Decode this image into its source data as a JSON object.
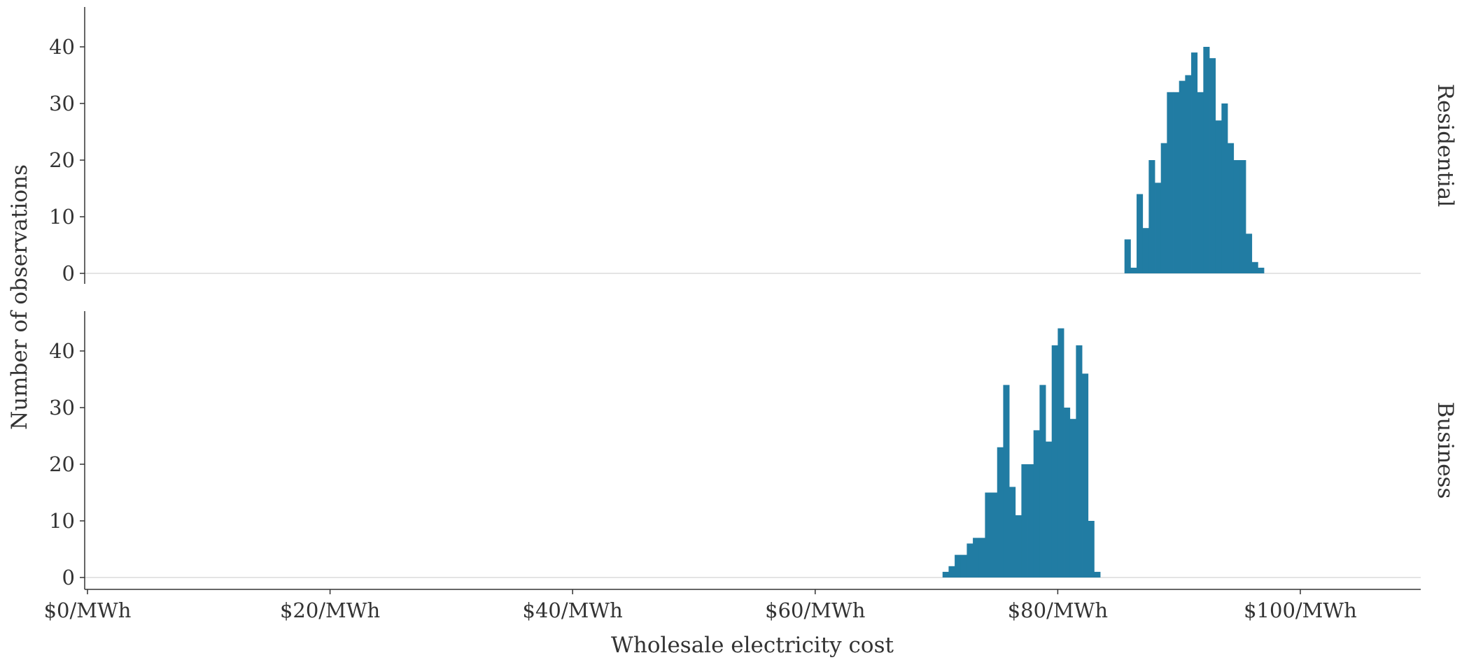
{
  "chart_data": {
    "type": "bar",
    "subtype": "faceted-histogram",
    "title": "",
    "xlabel": "Wholesale electricity cost",
    "ylabel": "Number of observations",
    "xlim": [
      0,
      110
    ],
    "ylim": [
      0,
      47
    ],
    "bin_width": 0.5,
    "color": "#217ca3",
    "x_ticks": [
      {
        "value": 0,
        "label": "$0/MWh"
      },
      {
        "value": 20,
        "label": "$20/MWh"
      },
      {
        "value": 40,
        "label": "$40/MWh"
      },
      {
        "value": 60,
        "label": "$60/MWh"
      },
      {
        "value": 80,
        "label": "$80/MWh"
      },
      {
        "value": 100,
        "label": "$100/MWh"
      }
    ],
    "y_ticks": [
      {
        "value": 0,
        "label": "0"
      },
      {
        "value": 10,
        "label": "10"
      },
      {
        "value": 20,
        "label": "20"
      },
      {
        "value": 30,
        "label": "30"
      },
      {
        "value": 40,
        "label": "40"
      }
    ],
    "grid": false,
    "facets": [
      {
        "label": "Residential",
        "bins": [
          {
            "x": 85.5,
            "count": 6
          },
          {
            "x": 86.0,
            "count": 1
          },
          {
            "x": 86.5,
            "count": 14
          },
          {
            "x": 87.0,
            "count": 8
          },
          {
            "x": 87.5,
            "count": 20
          },
          {
            "x": 88.0,
            "count": 16
          },
          {
            "x": 88.5,
            "count": 23
          },
          {
            "x": 89.0,
            "count": 32
          },
          {
            "x": 89.5,
            "count": 32
          },
          {
            "x": 90.0,
            "count": 34
          },
          {
            "x": 90.5,
            "count": 35
          },
          {
            "x": 91.0,
            "count": 39
          },
          {
            "x": 91.5,
            "count": 32
          },
          {
            "x": 92.0,
            "count": 40
          },
          {
            "x": 92.5,
            "count": 38
          },
          {
            "x": 93.0,
            "count": 27
          },
          {
            "x": 93.5,
            "count": 30
          },
          {
            "x": 94.0,
            "count": 23
          },
          {
            "x": 94.5,
            "count": 20
          },
          {
            "x": 95.0,
            "count": 20
          },
          {
            "x": 95.5,
            "count": 7
          },
          {
            "x": 96.0,
            "count": 2
          },
          {
            "x": 96.5,
            "count": 1
          }
        ]
      },
      {
        "label": "Business",
        "bins": [
          {
            "x": 70.5,
            "count": 1
          },
          {
            "x": 71.0,
            "count": 2
          },
          {
            "x": 71.5,
            "count": 4
          },
          {
            "x": 72.0,
            "count": 4
          },
          {
            "x": 72.5,
            "count": 6
          },
          {
            "x": 73.0,
            "count": 7
          },
          {
            "x": 73.5,
            "count": 7
          },
          {
            "x": 74.0,
            "count": 15
          },
          {
            "x": 74.5,
            "count": 15
          },
          {
            "x": 75.0,
            "count": 23
          },
          {
            "x": 75.5,
            "count": 34
          },
          {
            "x": 76.0,
            "count": 16
          },
          {
            "x": 76.5,
            "count": 11
          },
          {
            "x": 77.0,
            "count": 20
          },
          {
            "x": 77.5,
            "count": 20
          },
          {
            "x": 78.0,
            "count": 26
          },
          {
            "x": 78.5,
            "count": 34
          },
          {
            "x": 79.0,
            "count": 24
          },
          {
            "x": 79.5,
            "count": 41
          },
          {
            "x": 80.0,
            "count": 44
          },
          {
            "x": 80.5,
            "count": 30
          },
          {
            "x": 81.0,
            "count": 28
          },
          {
            "x": 81.5,
            "count": 41
          },
          {
            "x": 82.0,
            "count": 36
          },
          {
            "x": 82.5,
            "count": 10
          },
          {
            "x": 83.0,
            "count": 1
          }
        ]
      }
    ]
  }
}
